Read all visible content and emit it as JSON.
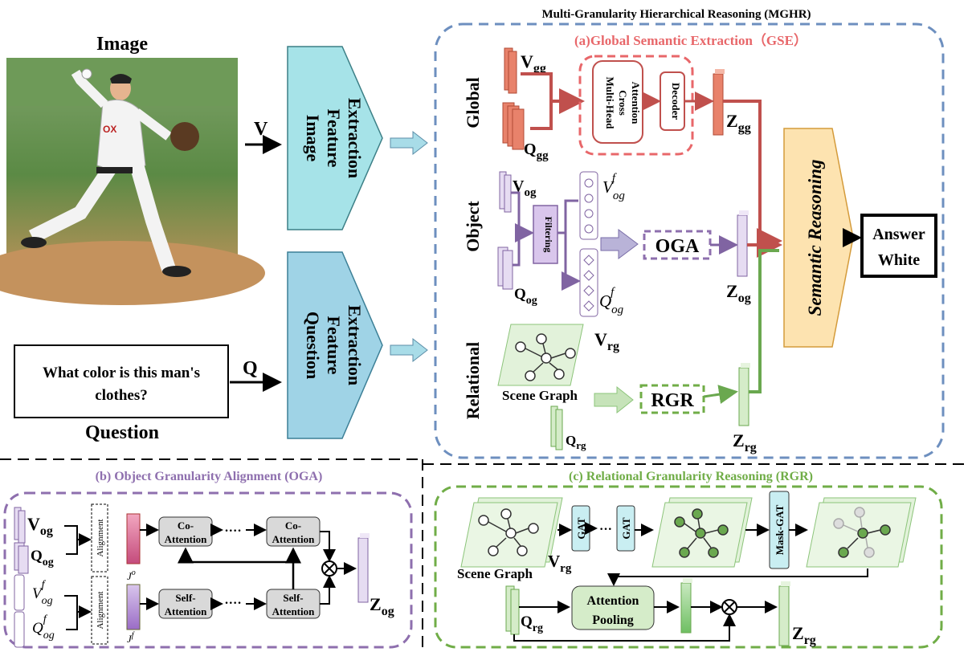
{
  "title": "Multi-Granularity Hierarchical Reasoning (MGHR)",
  "image_label": "Image",
  "question_label": "Question",
  "question_text_line1": "What color is this man's",
  "question_text_line2": "clothes?",
  "v_label": "V",
  "q_label": "Q",
  "image_feature": [
    "Image",
    "Feature",
    "Extraction"
  ],
  "question_feature": [
    "Question",
    "Feature",
    "Extraction"
  ],
  "gse_title": "(a)Global Semantic Extraction（GSE）",
  "rows": {
    "global": "Global",
    "object": "Object",
    "relational": "Relational"
  },
  "mhca": [
    "Multi-Head",
    "Cross",
    "Attention"
  ],
  "decoder": "Decoder",
  "filtering": "Filtering",
  "oga": "OGA",
  "rgr": "RGR",
  "scene_graph": "Scene Graph",
  "semantic_reasoning": "Semantic Reasoning",
  "answer_line1": "Answer",
  "answer_line2": "White",
  "sym": {
    "V": "V",
    "Q": "Q",
    "Z": "Z",
    "gg": "gg",
    "og": "og",
    "rg": "rg",
    "f": "f"
  },
  "oga_panel": {
    "title": "(b) Object Granularity Alignment (OGA)",
    "alignment": "Alignment",
    "co_attention": [
      "Co-",
      "Attention"
    ],
    "self_attention": [
      "Self-",
      "Attention"
    ],
    "dots": "····",
    "J": "J"
  },
  "rgr_panel": {
    "title": "(c) Relational Granularity Reasoning (RGR)",
    "gat": "GAT",
    "mask_gat": "Mask-GAT",
    "attention_pooling": [
      "Attention",
      "Pooling"
    ],
    "dots": "···"
  },
  "colors": {
    "global": "#c0504d",
    "object": "#8064a2",
    "relational": "#6aa84f",
    "feature_box": "#a6e3e8",
    "question_box": "#9fd3e6",
    "semantic_box": "#fde3b0",
    "dash_blue": "#6d8fbf",
    "dash_purple": "#8e6fae",
    "dash_green": "#70ad47"
  }
}
